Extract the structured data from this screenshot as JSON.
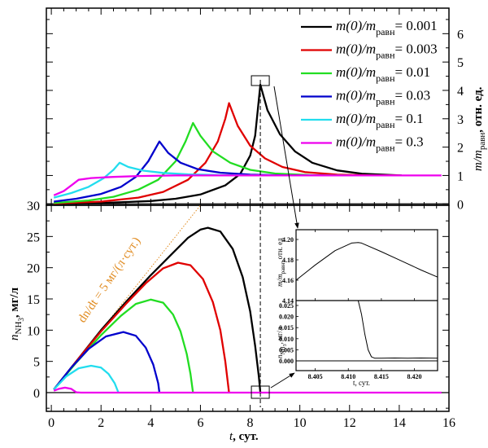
{
  "chart_data": [
    {
      "id": "top",
      "type": "line",
      "xlabel": "",
      "ylabel": "m/m_равн, отн. ед.",
      "ylabel_parts": {
        "main": "m/m",
        "sub": "равн",
        "tail": ", отн. ед."
      },
      "xlim": [
        -0.2,
        16
      ],
      "ylim": [
        -0.05,
        6.9
      ],
      "yticks": [
        0,
        1,
        2,
        3,
        4,
        5,
        6
      ],
      "ytick_labels": [
        "0",
        "1",
        "2",
        "3",
        "4",
        "5",
        "6"
      ],
      "y_axis_side": "right",
      "legend_placement": "top-right",
      "series": [
        {
          "name": "m(0)/m_равн = 0.001",
          "label_main": "m(0)/m",
          "label_sub": "равн",
          "label_val": "= 0.001",
          "color": "#000000",
          "x": [
            0.1,
            2,
            4,
            5,
            6,
            7,
            7.6,
            8.0,
            8.2,
            8.41,
            8.7,
            9.2,
            9.8,
            10.5,
            11.5,
            12.5,
            14.1
          ],
          "y": [
            0.0,
            0.03,
            0.1,
            0.18,
            0.33,
            0.65,
            1.05,
            1.7,
            2.4,
            4.2,
            3.3,
            2.45,
            1.85,
            1.45,
            1.18,
            1.06,
            1.0
          ]
        },
        {
          "name": "m(0)/m_равн = 0.003",
          "label_main": "m(0)/m",
          "label_sub": "равн",
          "label_val": "= 0.003",
          "color": "#E00000",
          "x": [
            0.1,
            2,
            3.5,
            4.5,
            5.5,
            6.2,
            6.7,
            7.0,
            7.15,
            7.5,
            8.0,
            8.6,
            9.3,
            10.2,
            11.5,
            13,
            14.0
          ],
          "y": [
            0.01,
            0.08,
            0.22,
            0.42,
            0.85,
            1.45,
            2.2,
            3.0,
            3.55,
            2.75,
            2.05,
            1.6,
            1.3,
            1.12,
            1.03,
            1.0,
            1.0
          ]
        },
        {
          "name": "m(0)/m_равн = 0.01",
          "label_main": "m(0)/m",
          "label_sub": "равн",
          "label_val": "= 0.01",
          "color": "#22DD22",
          "x": [
            0.1,
            1.5,
            2.5,
            3.5,
            4.3,
            5.0,
            5.4,
            5.7,
            6.0,
            6.5,
            7.2,
            8.0,
            9.0,
            10.5,
            12
          ],
          "y": [
            0.03,
            0.12,
            0.25,
            0.5,
            0.85,
            1.5,
            2.2,
            2.85,
            2.4,
            1.85,
            1.45,
            1.2,
            1.07,
            1.01,
            1.0
          ]
        },
        {
          "name": "m(0)/m_равн = 0.03",
          "label_main": "m(0)/m",
          "label_sub": "равн",
          "label_val": "= 0.03",
          "color": "#0000CC",
          "x": [
            0.1,
            1.0,
            2.0,
            2.8,
            3.4,
            3.9,
            4.35,
            4.7,
            5.2,
            5.9,
            6.8,
            8.0,
            9.5,
            11
          ],
          "y": [
            0.08,
            0.18,
            0.35,
            0.6,
            0.95,
            1.5,
            2.2,
            1.8,
            1.45,
            1.22,
            1.1,
            1.03,
            1.0,
            1.0
          ]
        },
        {
          "name": "m(0)/m_равн = 0.1",
          "label_main": "m(0)/m",
          "label_sub": "равн",
          "label_val": "= 0.1",
          "color": "#22DDEE",
          "x": [
            0.1,
            0.8,
            1.5,
            2.1,
            2.5,
            2.75,
            3.1,
            3.7,
            4.5,
            5.5,
            7.0,
            9.0
          ],
          "y": [
            0.22,
            0.38,
            0.6,
            0.9,
            1.2,
            1.45,
            1.3,
            1.17,
            1.09,
            1.04,
            1.01,
            1.0
          ]
        },
        {
          "name": "m(0)/m_равн = 0.3",
          "label_main": "m(0)/m",
          "label_sub": "равн",
          "label_val": "= 0.3",
          "color": "#EE00EE",
          "x": [
            0.1,
            0.5,
            0.85,
            1.1,
            1.6,
            2.5,
            3.5,
            5,
            8,
            12,
            15.7
          ],
          "y": [
            0.3,
            0.45,
            0.68,
            0.85,
            0.91,
            0.95,
            0.98,
            1.0,
            1.0,
            1.0,
            1.0
          ]
        }
      ]
    },
    {
      "id": "bottom",
      "type": "line",
      "xlabel": "t, сут.",
      "xlabel_parts": {
        "main": "t",
        "tail": ", сут."
      },
      "ylabel": "n_NH3, мг/л",
      "ylabel_parts": {
        "main": "n",
        "sub": "NH",
        "subsub": "3",
        "tail": ", мг/л"
      },
      "xlim": [
        -0.2,
        16
      ],
      "ylim": [
        -3,
        30
      ],
      "xticks": [
        0,
        2,
        4,
        6,
        8,
        10,
        12,
        14,
        16
      ],
      "xtick_labels": [
        "0",
        "2",
        "4",
        "6",
        "8",
        "10",
        "12",
        "14",
        "16"
      ],
      "yticks": [
        0,
        5,
        10,
        15,
        20,
        25,
        30
      ],
      "ytick_labels": [
        "0",
        "5",
        "10",
        "15",
        "20",
        "25",
        "30"
      ],
      "annotation": {
        "text": "dn/dt = 5 мг/(л·сут.)",
        "color": "#E08A1E",
        "line": {
          "x": [
            0.1,
            6.0
          ],
          "y": [
            0.5,
            30
          ]
        }
      },
      "series": [
        {
          "name": "m(0)/m_равн = 0.001",
          "color": "#000000",
          "x": [
            0.1,
            1,
            2,
            3,
            4,
            4.8,
            5.5,
            6.0,
            6.3,
            6.8,
            7.3,
            7.7,
            8.0,
            8.2,
            8.35,
            8.41
          ],
          "y": [
            0.5,
            5,
            10,
            14.5,
            18.8,
            22,
            24.8,
            26.1,
            26.4,
            25.8,
            23.0,
            18.5,
            13.0,
            7.5,
            2.5,
            0.0
          ]
        },
        {
          "name": "m(0)/m_равн = 0.003",
          "color": "#E00000",
          "x": [
            0.1,
            1,
            2,
            3,
            3.8,
            4.5,
            5.1,
            5.6,
            6.1,
            6.5,
            6.8,
            7.0,
            7.15
          ],
          "y": [
            0.5,
            5,
            9.8,
            14.2,
            17.5,
            19.9,
            20.8,
            20.4,
            18.2,
            14.5,
            10.0,
            5.0,
            0.0
          ]
        },
        {
          "name": "m(0)/m_равн = 0.01",
          "color": "#22DD22",
          "x": [
            0.1,
            1,
            2,
            2.8,
            3.4,
            4.0,
            4.5,
            4.9,
            5.2,
            5.45,
            5.6,
            5.7
          ],
          "y": [
            0.5,
            4.8,
            9.2,
            12.3,
            14.2,
            14.9,
            14.4,
            12.5,
            9.8,
            6.2,
            3.0,
            0.0
          ]
        },
        {
          "name": "m(0)/m_равн = 0.03",
          "color": "#0000CC",
          "x": [
            0.1,
            0.8,
            1.5,
            2.2,
            2.9,
            3.4,
            3.8,
            4.1,
            4.3,
            4.35
          ],
          "y": [
            0.5,
            4.0,
            7.0,
            9.0,
            9.7,
            9.1,
            7.2,
            4.5,
            1.5,
            0.0
          ]
        },
        {
          "name": "m(0)/m_равн = 0.1",
          "color": "#22DDEE",
          "x": [
            0.1,
            0.6,
            1.1,
            1.6,
            2.0,
            2.3,
            2.55,
            2.7
          ],
          "y": [
            0.5,
            2.6,
            3.9,
            4.3,
            4.0,
            3.0,
            1.5,
            0.0
          ]
        },
        {
          "name": "m(0)/m_равн = 0.3",
          "color": "#EE00EE",
          "x": [
            0.1,
            0.3,
            0.55,
            0.8,
            1.0,
            1.2,
            5,
            10,
            15.7
          ],
          "y": [
            0.3,
            0.6,
            0.8,
            0.6,
            0.05,
            0.0,
            0.0,
            0.0,
            0.0
          ]
        }
      ]
    },
    {
      "id": "inset-top",
      "type": "line",
      "ylabel": "m/m_равн, отн. ед",
      "ylabel_parts": {
        "main": "m/m",
        "sub": "равн",
        "tail": ", отн. ед"
      },
      "xlim": [
        8.4021,
        8.4235
      ],
      "ylim": [
        4.14,
        4.2096
      ],
      "yticks": [
        4.14,
        4.16,
        4.18,
        4.2
      ],
      "ytick_labels": [
        "4.14",
        "4.16",
        "4.18",
        "4.20"
      ],
      "series": [
        {
          "name": "m(0)/m_равн = 0.001",
          "color": "#000000",
          "x": [
            8.4021,
            8.405,
            8.408,
            8.4105,
            8.4115,
            8.412,
            8.415,
            8.418,
            8.421,
            8.4235
          ],
          "y": [
            4.16,
            4.175,
            4.189,
            4.1965,
            4.197,
            4.1965,
            4.188,
            4.179,
            4.17,
            4.163
          ]
        }
      ]
    },
    {
      "id": "inset-bottom",
      "type": "line",
      "xlabel": "t, сут.",
      "ylabel": "n_NH3, мг/л",
      "ylabel_parts": {
        "main": "n",
        "sub": "NH",
        "subsub": "3",
        "tail": ", мг/л"
      },
      "xlim": [
        8.4021,
        8.4235
      ],
      "ylim": [
        -0.0044,
        0.0272
      ],
      "xticks": [
        8.405,
        8.41,
        8.415,
        8.42
      ],
      "xtick_labels": [
        "8.405",
        "8.410",
        "8.415",
        "8.420"
      ],
      "yticks": [
        0.0,
        0.005,
        0.01,
        0.015,
        0.02,
        0.025
      ],
      "ytick_labels": [
        "0.000",
        "0.005",
        "0.010",
        "0.015",
        "0.020",
        "0.025"
      ],
      "series": [
        {
          "name": "m(0)/m_равн = 0.001",
          "color": "#000000",
          "x": [
            8.4115,
            8.412,
            8.4125,
            8.413,
            8.4135,
            8.414,
            8.415,
            8.417,
            8.419,
            8.421,
            8.4235
          ],
          "y": [
            0.0272,
            0.021,
            0.012,
            0.005,
            0.0018,
            0.0012,
            0.0012,
            0.0013,
            0.0012,
            0.0013,
            0.0012
          ]
        }
      ]
    }
  ],
  "marker": {
    "t": 8.41,
    "inset_zoom_boxes": 2
  }
}
